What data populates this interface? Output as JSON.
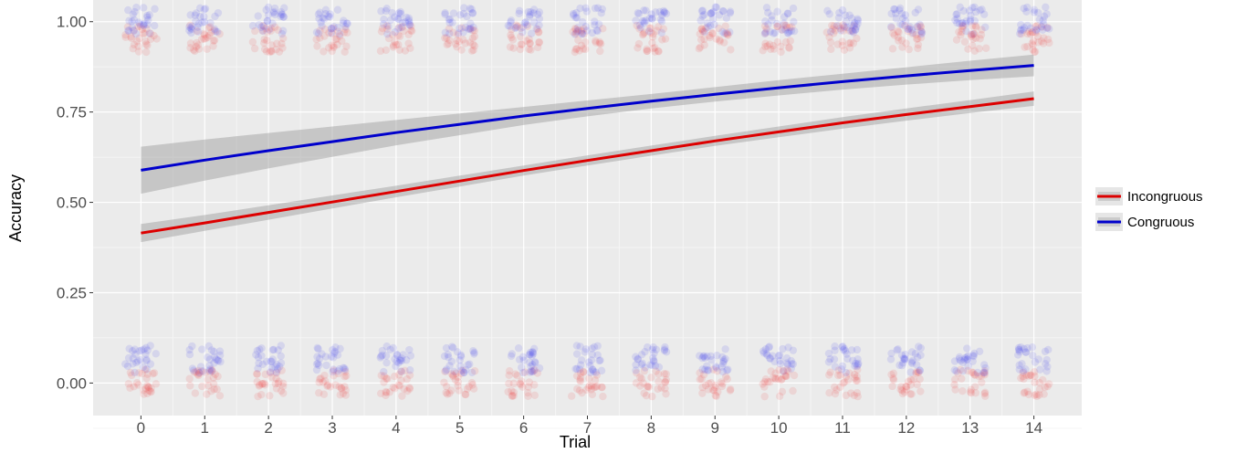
{
  "chart_data": {
    "type": "line",
    "title": "",
    "xlabel": "Trial",
    "ylabel": "Accuracy",
    "x": [
      0,
      1,
      2,
      3,
      4,
      5,
      6,
      7,
      8,
      9,
      10,
      11,
      12,
      13,
      14
    ],
    "x_ticks": [
      "0",
      "1",
      "2",
      "3",
      "4",
      "5",
      "6",
      "7",
      "8",
      "9",
      "10",
      "11",
      "12",
      "13",
      "14"
    ],
    "y_ticks": [
      "0.00",
      "0.25",
      "0.50",
      "0.75",
      "1.00"
    ],
    "xlim": [
      -0.75,
      14.75
    ],
    "ylim": [
      -0.09,
      1.06
    ],
    "grid": true,
    "legend_position": "right",
    "series": [
      {
        "name": "Incongruous",
        "color": "#dd0000",
        "values": [
          0.415,
          0.443,
          0.472,
          0.501,
          0.53,
          0.559,
          0.588,
          0.616,
          0.643,
          0.67,
          0.695,
          0.72,
          0.743,
          0.765,
          0.787
        ],
        "ci_half_width": [
          0.025,
          0.022,
          0.02,
          0.018,
          0.016,
          0.015,
          0.014,
          0.014,
          0.014,
          0.014,
          0.015,
          0.016,
          0.017,
          0.018,
          0.02
        ]
      },
      {
        "name": "Congruous",
        "color": "#0000cc",
        "values": [
          0.589,
          0.617,
          0.643,
          0.668,
          0.693,
          0.716,
          0.739,
          0.76,
          0.78,
          0.799,
          0.817,
          0.834,
          0.85,
          0.865,
          0.879
        ],
        "ci_half_width": [
          0.065,
          0.057,
          0.049,
          0.042,
          0.035,
          0.03,
          0.025,
          0.022,
          0.02,
          0.02,
          0.021,
          0.022,
          0.024,
          0.027,
          0.03
        ]
      }
    ],
    "raw_points": {
      "description_values": [
        0,
        1
      ],
      "Incongruous": {
        "color": "#ee4444",
        "y_center": [
          0.0,
          0.953
        ]
      },
      "Congruous": {
        "color": "#4444ee",
        "y_center": [
          0.066,
          1.003
        ]
      }
    }
  }
}
